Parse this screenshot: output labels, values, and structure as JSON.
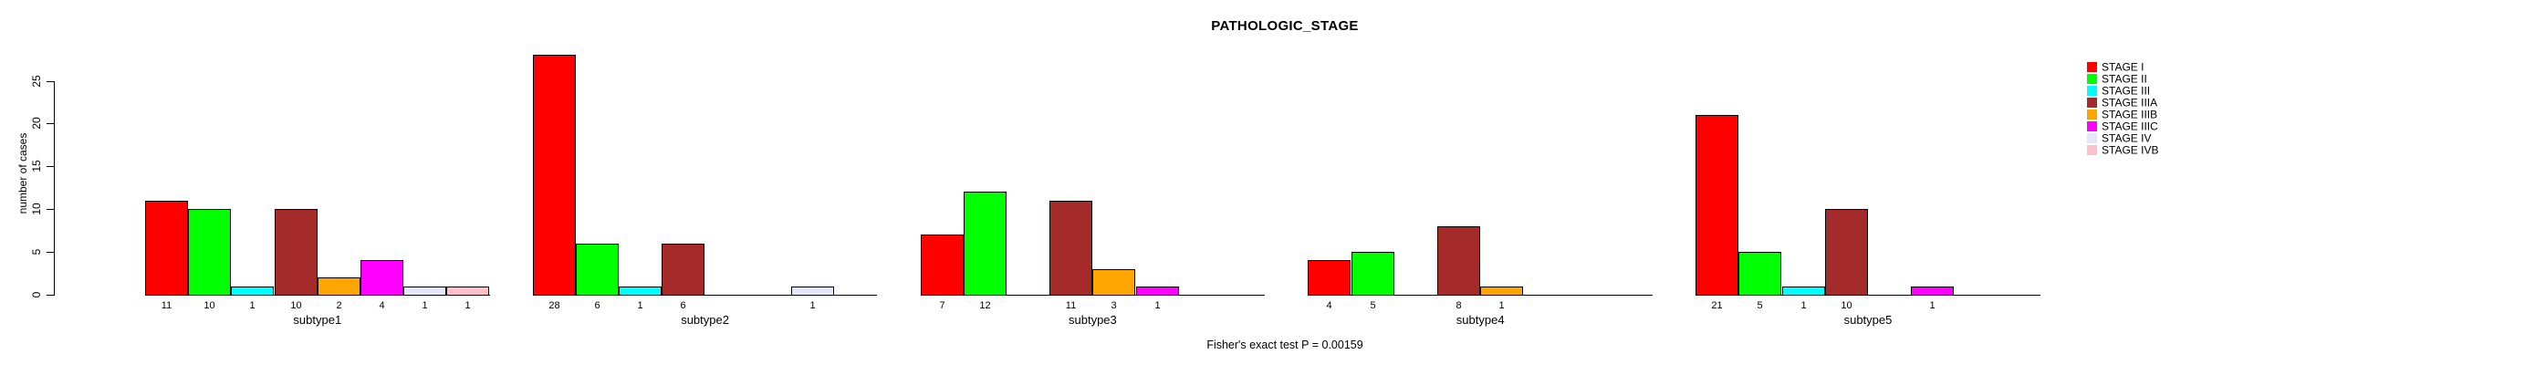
{
  "chart_data": {
    "type": "bar",
    "title": "PATHOLOGIC_STAGE",
    "ylabel": "number of cases",
    "xlabel": "",
    "caption": "Fisher's exact test P = 0.00159",
    "categories": [
      "subtype1",
      "subtype2",
      "subtype3",
      "subtype4",
      "subtype5"
    ],
    "series": [
      {
        "name": "STAGE I",
        "color": "#FF0000",
        "values": [
          11,
          28,
          7,
          4,
          21
        ]
      },
      {
        "name": "STAGE II",
        "color": "#00FF00",
        "values": [
          10,
          6,
          12,
          5,
          5
        ]
      },
      {
        "name": "STAGE III",
        "color": "#00FFFF",
        "values": [
          1,
          1,
          0,
          0,
          1
        ]
      },
      {
        "name": "STAGE IIIA",
        "color": "#A52A2A",
        "values": [
          10,
          6,
          11,
          8,
          10
        ]
      },
      {
        "name": "STAGE IIIB",
        "color": "#FFA500",
        "values": [
          2,
          0,
          3,
          1,
          0
        ]
      },
      {
        "name": "STAGE IIIC",
        "color": "#FF00FF",
        "values": [
          4,
          0,
          1,
          0,
          1
        ]
      },
      {
        "name": "STAGE IV",
        "color": "#E6E6FA",
        "values": [
          1,
          1,
          0,
          0,
          0
        ]
      },
      {
        "name": "STAGE IVB",
        "color": "#FFC0CB",
        "values": [
          1,
          0,
          0,
          0,
          0
        ]
      }
    ],
    "yticks": [
      0,
      5,
      10,
      15,
      20,
      25
    ],
    "ylim": [
      0,
      25
    ],
    "bar_value_labels_shown": true,
    "legend_position": "right",
    "grid": false,
    "background_color": "#FFFFFF",
    "bar_border_color": "#000000"
  }
}
